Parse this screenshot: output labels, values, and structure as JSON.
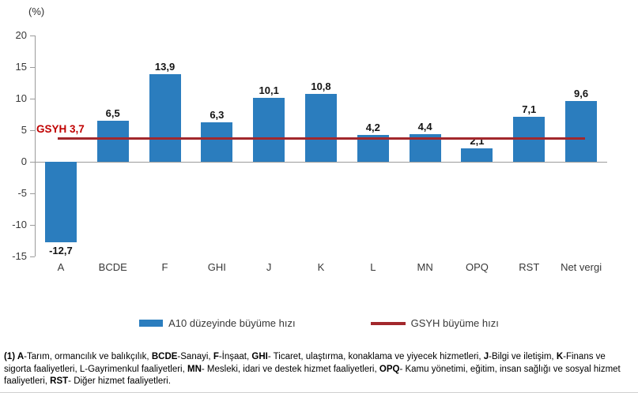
{
  "chart_data": {
    "type": "bar",
    "title": "",
    "ylabel": "(%)",
    "xlabel": "",
    "ylim": [
      -15,
      20
    ],
    "ytick_step": 5,
    "yticks": [
      20,
      15,
      10,
      5,
      0,
      -5,
      -10,
      -15
    ],
    "ytick_labels": [
      "20",
      "15",
      "10",
      "5",
      "0",
      "-5",
      "-10",
      "-15"
    ],
    "grid": false,
    "legend_position": "bottom",
    "categories": [
      "A",
      "BCDE",
      "F",
      "GHI",
      "J",
      "K",
      "L",
      "MN",
      "OPQ",
      "RST",
      "Net vergi"
    ],
    "series": [
      {
        "name": "A10 düzeyinde büyüme hızı",
        "type": "bar",
        "color": "#2B7DBE",
        "values": [
          -12.7,
          6.5,
          13.9,
          6.3,
          10.1,
          10.8,
          4.2,
          4.4,
          2.1,
          7.1,
          9.6
        ],
        "value_labels": [
          "-12,7",
          "6,5",
          "13,9",
          "6,3",
          "10,1",
          "10,8",
          "4,2",
          "4,4",
          "2,1",
          "7,1",
          "9,6"
        ]
      },
      {
        "name": "GSYH büyüme hızı",
        "type": "line",
        "color": "#A2282C",
        "value": 3.7,
        "annotation": "GSYH 3,7",
        "annotation_color": "#C00000"
      }
    ]
  },
  "legend": {
    "items": [
      {
        "label": "A10 düzeyinde büyüme hızı",
        "swatch": "bar",
        "color": "#2B7DBE"
      },
      {
        "label": "GSYH büyüme hızı",
        "swatch": "line",
        "color": "#A2282C"
      }
    ]
  },
  "colors": {
    "bar": "#2B7DBE",
    "reference_line": "#A2282C",
    "reference_label": "#C00000",
    "axis": "#9B9B9B",
    "text": "#383838"
  },
  "footnote": {
    "segments": [
      {
        "text": "(1) A",
        "bold": true
      },
      {
        "text": "-Tarım, ormancılık ve balıkçılık, ",
        "bold": false
      },
      {
        "text": "BCDE",
        "bold": true
      },
      {
        "text": "-Sanayi, ",
        "bold": false
      },
      {
        "text": "F",
        "bold": true
      },
      {
        "text": "-İnşaat, ",
        "bold": false
      },
      {
        "text": "GHI",
        "bold": true
      },
      {
        "text": "- Ticaret, ulaştırma, konaklama ve yiyecek hizmetleri, ",
        "bold": false
      },
      {
        "text": "J",
        "bold": true
      },
      {
        "text": "-Bilgi ve iletişim, ",
        "bold": false
      },
      {
        "text": "K",
        "bold": true
      },
      {
        "text": "-Finans ve sigorta faaliyetleri, L-Gayrimenkul faaliyetleri, ",
        "bold": false
      },
      {
        "text": "MN",
        "bold": true
      },
      {
        "text": "- Mesleki, idari ve destek hizmet faaliyetleri, ",
        "bold": false
      },
      {
        "text": "OPQ",
        "bold": true
      },
      {
        "text": "- Kamu yönetimi, eğitim, insan sağlığı ve sosyal hizmet faaliyetleri, ",
        "bold": false
      },
      {
        "text": "RST",
        "bold": true
      },
      {
        "text": "- Diğer hizmet faaliyetleri.",
        "bold": false
      }
    ]
  }
}
